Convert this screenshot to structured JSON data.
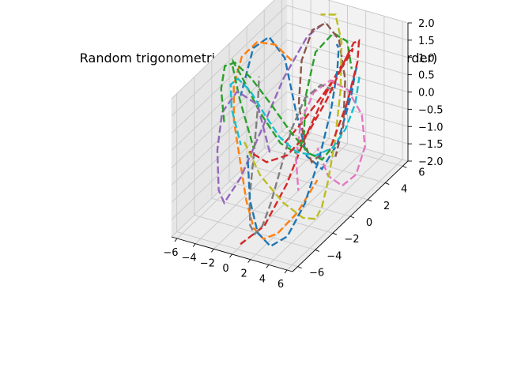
{
  "chart_data": {
    "type": "line",
    "projection": "3d",
    "title": "Random trigonometric vector field on a Torus (1st order)",
    "xlabel": "",
    "ylabel": "",
    "zlabel": "",
    "x_ticks": [
      "−6",
      "−4",
      "−2",
      "0",
      "2",
      "4",
      "6"
    ],
    "y_ticks": [
      "−6",
      "−4",
      "−2",
      "0",
      "2",
      "4",
      "6"
    ],
    "z_ticks": [
      "−2.0",
      "−1.5",
      "−1.0",
      "−0.5",
      "0.0",
      "0.5",
      "1.0",
      "1.5",
      "2.0"
    ],
    "xlim": [
      -6.6,
      6.6
    ],
    "ylim": [
      -6.6,
      6.6
    ],
    "zlim": [
      -2.0,
      2.0
    ],
    "grid": true,
    "legend": false,
    "torus": {
      "major_radius": 4,
      "minor_radius": 2
    },
    "series": [
      {
        "color": "#1f77b4",
        "points": [
          [
            5.79,
            0.15,
            0.88
          ],
          [
            5.42,
            1.5,
            1.41
          ],
          [
            4.77,
            2.69,
            1.56
          ],
          [
            3.52,
            3.85,
            1.06
          ],
          [
            2.55,
            4.39,
            0.16
          ],
          [
            1.21,
            4.16,
            -1.33
          ],
          [
            0.13,
            3.54,
            -1.98
          ],
          [
            -0.94,
            2.93,
            -1.54
          ],
          [
            -1.95,
            2.69,
            -0.2
          ],
          [
            -3.09,
            2.67,
            1.2
          ],
          [
            -4.35,
            2.19,
            1.83
          ],
          [
            -5.21,
            1.28,
            1.66
          ],
          [
            -5.69,
            0.35,
            0.47
          ]
        ]
      },
      {
        "color": "#ff7f0e",
        "points": [
          [
            5.44,
            -2.55,
            -0.42
          ],
          [
            4.28,
            -3.63,
            -1.19
          ],
          [
            2.81,
            -4.34,
            -1.73
          ],
          [
            1.36,
            -4.43,
            -1.98
          ],
          [
            -0.02,
            -4.1,
            -1.85
          ],
          [
            -1.31,
            -3.6,
            -1.27
          ],
          [
            -2.45,
            -3.14,
            -0.28
          ],
          [
            -3.52,
            -2.69,
            0.64
          ],
          [
            -4.42,
            -1.77,
            1.38
          ],
          [
            -4.78,
            -0.47,
            1.87
          ],
          [
            -4.41,
            0.89,
            1.99
          ],
          [
            -3.68,
            2.18,
            1.66
          ],
          [
            -2.66,
            3.27,
            0.95
          ]
        ]
      },
      {
        "color": "#2ca02c",
        "points": [
          [
            1.43,
            5.58,
            0.52
          ],
          [
            1.59,
            4.91,
            1.49
          ],
          [
            1.19,
            3.74,
            1.99
          ],
          [
            0.14,
            2.8,
            1.58
          ],
          [
            -1.04,
            2.89,
            0.17
          ],
          [
            -2.06,
            3.77,
            -1.33
          ],
          [
            -3.3,
            4.24,
            -1.96
          ],
          [
            -4.69,
            3.84,
            -1.67
          ],
          [
            -5.66,
            2.51,
            -0.53
          ],
          [
            -5.92,
            0.78,
            0.87
          ],
          [
            -5.46,
            -0.76,
            1.75
          ],
          [
            -4.44,
            -1.87,
            1.94
          ],
          [
            -3.06,
            -2.51,
            1.25
          ],
          [
            -1.49,
            -2.57,
            -0.02
          ]
        ]
      },
      {
        "color": "#d62728",
        "points": [
          [
            -4.01,
            3.39,
            -1.57
          ],
          [
            -3.06,
            4.41,
            -1.15
          ],
          [
            -1.72,
            5.52,
            -0.48
          ],
          [
            -0.12,
            6.06,
            0.32
          ],
          [
            1.52,
            5.5,
            1.04
          ],
          [
            2.89,
            4.19,
            1.56
          ],
          [
            3.81,
            2.59,
            1.8
          ],
          [
            4.25,
            0.99,
            1.75
          ],
          [
            4.1,
            -0.56,
            1.31
          ],
          [
            3.51,
            -1.98,
            0.49
          ],
          [
            2.77,
            -3.25,
            -0.57
          ],
          [
            1.74,
            -4.73,
            -1.5
          ],
          [
            0.11,
            -5.77,
            -1.9
          ]
        ]
      },
      {
        "color": "#9467bd",
        "points": [
          [
            -0.15,
            -2.1,
            -0.18
          ],
          [
            -0.67,
            -2.98,
            1.4
          ],
          [
            -1.95,
            -3.96,
            1.93
          ],
          [
            -3.12,
            -4.47,
            1.35
          ],
          [
            -3.86,
            -4.24,
            0.15
          ],
          [
            -4.5,
            -3.41,
            -1.26
          ],
          [
            -5.04,
            -2.21,
            -1.96
          ],
          [
            -4.78,
            -0.6,
            -1.6
          ],
          [
            -4.11,
            1.09,
            -0.57
          ],
          [
            -3.28,
            2.75,
            0.59
          ],
          [
            -2.04,
            4.15,
            1.55
          ],
          [
            -0.57,
            4.66,
            1.94
          ]
        ]
      },
      {
        "color": "#8c564b",
        "points": [
          [
            0.53,
            4.67,
            -1.87
          ],
          [
            0.52,
            5.58,
            -1.2
          ],
          [
            0.34,
            5.98,
            0.03
          ],
          [
            -0.1,
            5.74,
            1.21
          ],
          [
            -0.63,
            4.79,
            1.89
          ],
          [
            -0.98,
            3.62,
            1.94
          ],
          [
            -1.12,
            2.53,
            1.31
          ],
          [
            -1.06,
            2.15,
            0.18
          ],
          [
            -0.96,
            2.64,
            -1.06
          ],
          [
            -0.95,
            3.52,
            -1.86
          ],
          [
            -1.03,
            4.72,
            -1.91
          ]
        ]
      },
      {
        "color": "#e377c2",
        "points": [
          [
            1.66,
            1.42,
            -0.74
          ],
          [
            2.38,
            1.9,
            -1.61
          ],
          [
            3.27,
            2.56,
            -1.99
          ],
          [
            4.3,
            3.07,
            -1.71
          ],
          [
            5.33,
            3.01,
            -0.81
          ],
          [
            5.9,
            2.06,
            0.39
          ],
          [
            5.69,
            0.67,
            1.43
          ],
          [
            5.01,
            -0.59,
            1.96
          ],
          [
            4.18,
            -1.64,
            1.8
          ],
          [
            3.35,
            -2.22,
            1.04
          ],
          [
            2.75,
            -2.17,
            -0.11
          ],
          [
            2.49,
            -1.62,
            -1.18
          ]
        ]
      },
      {
        "color": "#7f7f7f",
        "points": [
          [
            -2.95,
            -0.42,
            1.42
          ],
          [
            -2.29,
            -1.3,
            0.66
          ],
          [
            -1.76,
            -2.31,
            -0.38
          ],
          [
            -1.33,
            -3.21,
            -1.31
          ],
          [
            -0.68,
            -3.82,
            -1.89
          ],
          [
            0.17,
            -4.18,
            -1.99
          ],
          [
            1.16,
            -4.35,
            -1.64
          ],
          [
            2.08,
            -4.37,
            -0.92
          ],
          [
            2.9,
            -4.07,
            0.1
          ],
          [
            3.5,
            -3.44,
            1.13
          ],
          [
            4.04,
            -2.49,
            1.83
          ],
          [
            4.61,
            -1.26,
            1.96
          ],
          [
            4.97,
            0.13,
            1.46
          ]
        ]
      },
      {
        "color": "#bcbd22",
        "points": [
          [
            0.28,
            -5.56,
            1.06
          ],
          [
            2.05,
            -5.53,
            0.18
          ],
          [
            3.46,
            -4.4,
            -0.77
          ],
          [
            4.11,
            -2.81,
            -1.55
          ],
          [
            4.04,
            -1.28,
            -1.96
          ],
          [
            3.68,
            -0.2,
            -1.92
          ],
          [
            3.39,
            0.76,
            -1.48
          ],
          [
            3.03,
            1.98,
            -0.62
          ],
          [
            2.29,
            3.41,
            0.52
          ],
          [
            1.13,
            4.74,
            1.48
          ],
          [
            -0.33,
            5.58,
            1.96
          ],
          [
            -1.81,
            5.42,
            1.89
          ]
        ]
      },
      {
        "color": "#17becf",
        "points": [
          [
            3.28,
            4.52,
            0.69
          ],
          [
            2.24,
            5.16,
            -0.31
          ],
          [
            0.97,
            5.37,
            -1.2
          ],
          [
            -0.38,
            5.28,
            -1.83
          ],
          [
            -1.64,
            4.62,
            -1.99
          ],
          [
            -2.69,
            3.55,
            -1.7
          ],
          [
            -3.36,
            2.31,
            -1.01
          ],
          [
            -3.66,
            0.95,
            -0.06
          ],
          [
            -3.78,
            -0.53,
            0.96
          ],
          [
            -3.64,
            -2.12,
            1.72
          ],
          [
            -2.91,
            -3.7,
            1.99
          ],
          [
            -1.6,
            -4.98,
            1.7
          ],
          [
            0.08,
            -5.67,
            0.94
          ]
        ]
      },
      {
        "color": "#1f77b4",
        "points": [
          [
            2.11,
            3.15,
            1.88
          ],
          [
            2.97,
            2.48,
            1.99
          ],
          [
            3.91,
            1.34,
            1.68
          ],
          [
            4.72,
            -0.21,
            1.01
          ],
          [
            5.12,
            -1.93,
            0.1
          ],
          [
            4.95,
            -3.46,
            -0.92
          ],
          [
            4.05,
            -4.52,
            -1.68
          ],
          [
            2.59,
            -4.92,
            -1.98
          ],
          [
            0.92,
            -4.63,
            -1.79
          ],
          [
            -0.59,
            -3.94,
            -1.12
          ],
          [
            -1.72,
            -3.03,
            -0.13
          ]
        ]
      },
      {
        "color": "#d62728",
        "points": [
          [
            -5.44,
            1.08,
            -1.3
          ],
          [
            -4.87,
            2.45,
            -1.9
          ],
          [
            -3.78,
            3.66,
            -1.91
          ],
          [
            -2.28,
            4.48,
            -1.35
          ],
          [
            -0.6,
            4.88,
            -0.35
          ],
          [
            1.08,
            4.89,
            0.76
          ],
          [
            2.64,
            4.54,
            1.62
          ],
          [
            4.01,
            3.72,
            1.99
          ],
          [
            5.07,
            2.43,
            1.76
          ],
          [
            5.48,
            0.79,
            0.99
          ],
          [
            5.13,
            -0.9,
            -0.03
          ]
        ]
      },
      {
        "color": "#2ca02c",
        "points": [
          [
            -3.16,
            -4.17,
            0.93
          ],
          [
            -4.26,
            -3.38,
            1.68
          ],
          [
            -5.05,
            -2.14,
            1.98
          ],
          [
            -5.35,
            -0.66,
            1.7
          ],
          [
            -5.13,
            0.95,
            0.88
          ],
          [
            -4.42,
            2.49,
            -0.2
          ],
          [
            -3.33,
            3.67,
            -1.23
          ],
          [
            -1.97,
            4.26,
            -1.86
          ],
          [
            -0.52,
            4.24,
            -1.93
          ],
          [
            0.85,
            3.75,
            -1.42
          ]
        ]
      }
    ]
  }
}
